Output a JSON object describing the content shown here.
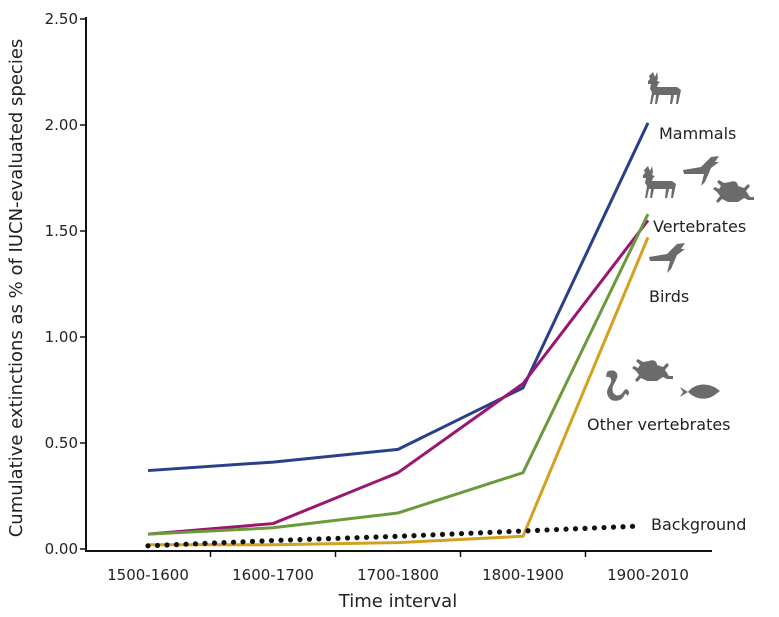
{
  "chart_data": {
    "type": "line",
    "title": "",
    "xlabel": "Time interval",
    "ylabel": "Cumulative extinctions as % of IUCN-evaluated species",
    "categories": [
      "1500-1600",
      "1600-1700",
      "1700-1800",
      "1800-1900",
      "1900-2010"
    ],
    "ylim": [
      0,
      2.5
    ],
    "yticks": [
      "0.00",
      "0.50",
      "1.00",
      "1.50",
      "2.00",
      "2.50"
    ],
    "grid": false,
    "series": [
      {
        "name": "Mammals",
        "color": "#2a3f8a",
        "style": "solid",
        "values": [
          0.37,
          0.41,
          0.47,
          0.76,
          2.01
        ],
        "icons": [
          "deer-icon"
        ]
      },
      {
        "name": "Vertebrates",
        "color": "#9a1670",
        "style": "solid",
        "values": [
          0.07,
          0.12,
          0.36,
          0.78,
          1.55
        ],
        "icons": [
          "deer-icon",
          "bird-icon",
          "frog-icon"
        ]
      },
      {
        "name": "Birds",
        "color": "#6a9a3a",
        "style": "solid",
        "values": [
          0.07,
          0.1,
          0.17,
          0.36,
          1.58
        ],
        "icons": [
          "bird-icon"
        ]
      },
      {
        "name": "Other vertebrates",
        "color": "#d4a020",
        "style": "solid",
        "values": [
          0.02,
          0.02,
          0.03,
          0.06,
          1.47
        ],
        "icons": [
          "snake-icon",
          "frog-icon",
          "fish-icon"
        ]
      },
      {
        "name": "Background",
        "color": "#111111",
        "style": "dotted",
        "values": [
          0.015,
          0.04,
          0.06,
          0.085,
          0.11
        ]
      }
    ]
  }
}
